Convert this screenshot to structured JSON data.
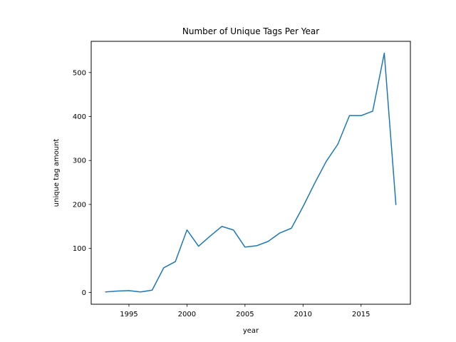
{
  "chart_data": {
    "type": "line",
    "title": "Number of Unique Tags Per Year",
    "xlabel": "year",
    "ylabel": "unique tag amount",
    "xlim": [
      1991.75,
      2019.25
    ],
    "ylim": [
      -27,
      571
    ],
    "xticks": [
      1995,
      2000,
      2005,
      2010,
      2015
    ],
    "yticks": [
      0,
      100,
      200,
      300,
      400,
      500
    ],
    "grid": false,
    "legend": "none",
    "series": [
      {
        "color": "#1f77b4",
        "x": [
          1993,
          1994,
          1995,
          1996,
          1997,
          1998,
          1999,
          2000,
          2001,
          2002,
          2003,
          2004,
          2005,
          2006,
          2007,
          2008,
          2009,
          2010,
          2011,
          2012,
          2013,
          2014,
          2015,
          2016,
          2017,
          2018
        ],
        "y": [
          1,
          3,
          4,
          1,
          5,
          56,
          70,
          142,
          105,
          128,
          150,
          142,
          103,
          106,
          116,
          135,
          146,
          195,
          248,
          298,
          337,
          402,
          402,
          412,
          544,
          200
        ]
      }
    ]
  }
}
